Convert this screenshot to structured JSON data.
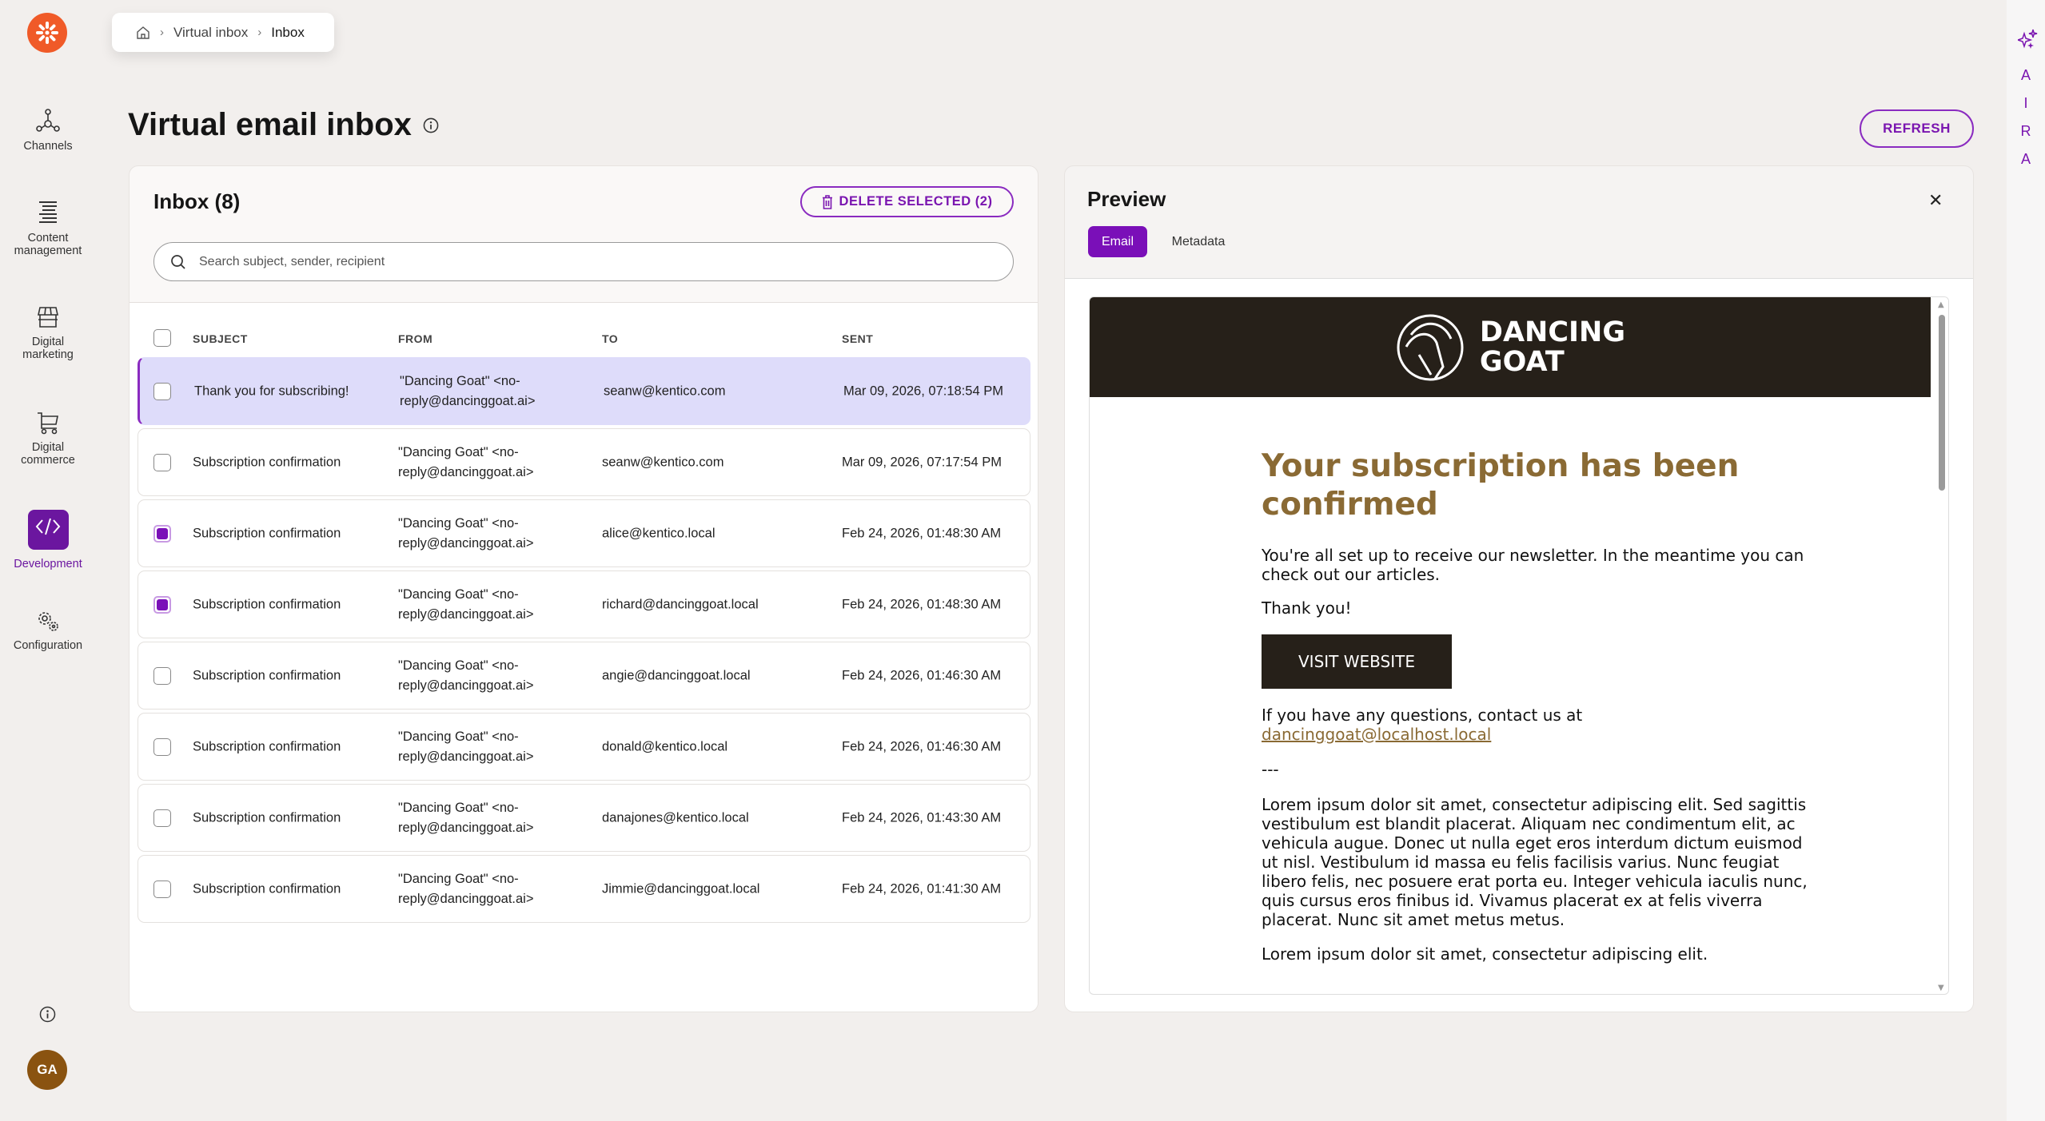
{
  "breadcrumb": {
    "items": [
      "Virtual inbox",
      "Inbox"
    ]
  },
  "sidebar": {
    "items": [
      {
        "label": "Channels",
        "icon": "channels-icon"
      },
      {
        "label": "Content management",
        "icon": "content-list-icon"
      },
      {
        "label": "Digital marketing",
        "icon": "storefront-icon"
      },
      {
        "label": "Digital commerce",
        "icon": "cart-icon"
      },
      {
        "label": "Development",
        "icon": "code-icon",
        "active": true
      },
      {
        "label": "Configuration",
        "icon": "gears-icon"
      }
    ],
    "avatar": "GA"
  },
  "page": {
    "title": "Virtual email inbox",
    "refresh_label": "REFRESH"
  },
  "inbox": {
    "title": "Inbox (8)",
    "delete_label": "DELETE SELECTED (2)",
    "search_placeholder": "Search subject, sender, recipient",
    "columns": [
      "SUBJECT",
      "FROM",
      "TO",
      "SENT"
    ],
    "rows": [
      {
        "subject": "Thank you for subscribing!",
        "from1": "\"Dancing Goat\" <no-",
        "from2": "reply@dancinggoat.ai>",
        "to": "seanw@kentico.com",
        "sent": "Mar 09, 2026, 07:18:54 PM",
        "checked": false,
        "selected": true
      },
      {
        "subject": "Subscription confirmation",
        "from1": "\"Dancing Goat\" <no-",
        "from2": "reply@dancinggoat.ai>",
        "to": "seanw@kentico.com",
        "sent": "Mar 09, 2026, 07:17:54 PM",
        "checked": false,
        "selected": false
      },
      {
        "subject": "Subscription confirmation",
        "from1": "\"Dancing Goat\" <no-",
        "from2": "reply@dancinggoat.ai>",
        "to": "alice@kentico.local",
        "sent": "Feb 24, 2026, 01:48:30 AM",
        "checked": true,
        "selected": false
      },
      {
        "subject": "Subscription confirmation",
        "from1": "\"Dancing Goat\" <no-",
        "from2": "reply@dancinggoat.ai>",
        "to": "richard@dancinggoat.local",
        "sent": "Feb 24, 2026, 01:48:30 AM",
        "checked": true,
        "selected": false
      },
      {
        "subject": "Subscription confirmation",
        "from1": "\"Dancing Goat\" <no-",
        "from2": "reply@dancinggoat.ai>",
        "to": "angie@dancinggoat.local",
        "sent": "Feb 24, 2026, 01:46:30 AM",
        "checked": false,
        "selected": false
      },
      {
        "subject": "Subscription confirmation",
        "from1": "\"Dancing Goat\" <no-",
        "from2": "reply@dancinggoat.ai>",
        "to": "donald@kentico.local",
        "sent": "Feb 24, 2026, 01:46:30 AM",
        "checked": false,
        "selected": false
      },
      {
        "subject": "Subscription confirmation",
        "from1": "\"Dancing Goat\" <no-",
        "from2": "reply@dancinggoat.ai>",
        "to": "danajones@kentico.local",
        "sent": "Feb 24, 2026, 01:43:30 AM",
        "checked": false,
        "selected": false
      },
      {
        "subject": "Subscription confirmation",
        "from1": "\"Dancing Goat\" <no-",
        "from2": "reply@dancinggoat.ai>",
        "to": "Jimmie@dancinggoat.local",
        "sent": "Feb 24, 2026, 01:41:30 AM",
        "checked": false,
        "selected": false
      }
    ]
  },
  "preview": {
    "title": "Preview",
    "tabs": [
      "Email",
      "Metadata"
    ],
    "active_tab": "Email",
    "email": {
      "brand_line1": "DANCING",
      "brand_line2": "GOAT",
      "heading": "Your subscription has been confirmed",
      "intro": "You're all set up to receive our newsletter. In the meantime you can check out our articles.",
      "thanks": "Thank you!",
      "button": "VISIT WEBSITE",
      "contact": "If you have any questions, contact us at",
      "contact_email": "dancinggoat@localhost.local",
      "divider": "---",
      "lorem1": "Lorem ipsum dolor sit amet, consectetur adipiscing elit. Sed sagittis vestibulum est blandit placerat. Aliquam nec condimentum elit, ac vehicula augue. Donec ut nulla eget eros interdum dictum euismod ut nisl. Vestibulum id massa eu felis facilisis varius. Nunc feugiat libero felis, nec posuere erat porta eu. Integer vehicula iaculis nunc, quis cursus eros finibus id. Vivamus placerat ex at felis viverra placerat. Nunc sit amet metus metus.",
      "lorem2": "Lorem ipsum dolor sit amet, consectetur adipiscing elit."
    }
  },
  "aira": {
    "letters": [
      "A",
      "I",
      "R",
      "A"
    ]
  },
  "colors": {
    "accent": "#7a15b0",
    "logo": "#f05a28",
    "selected_row": "#dedcfa",
    "email_heading": "#8a6a34",
    "email_dark": "#262019"
  }
}
